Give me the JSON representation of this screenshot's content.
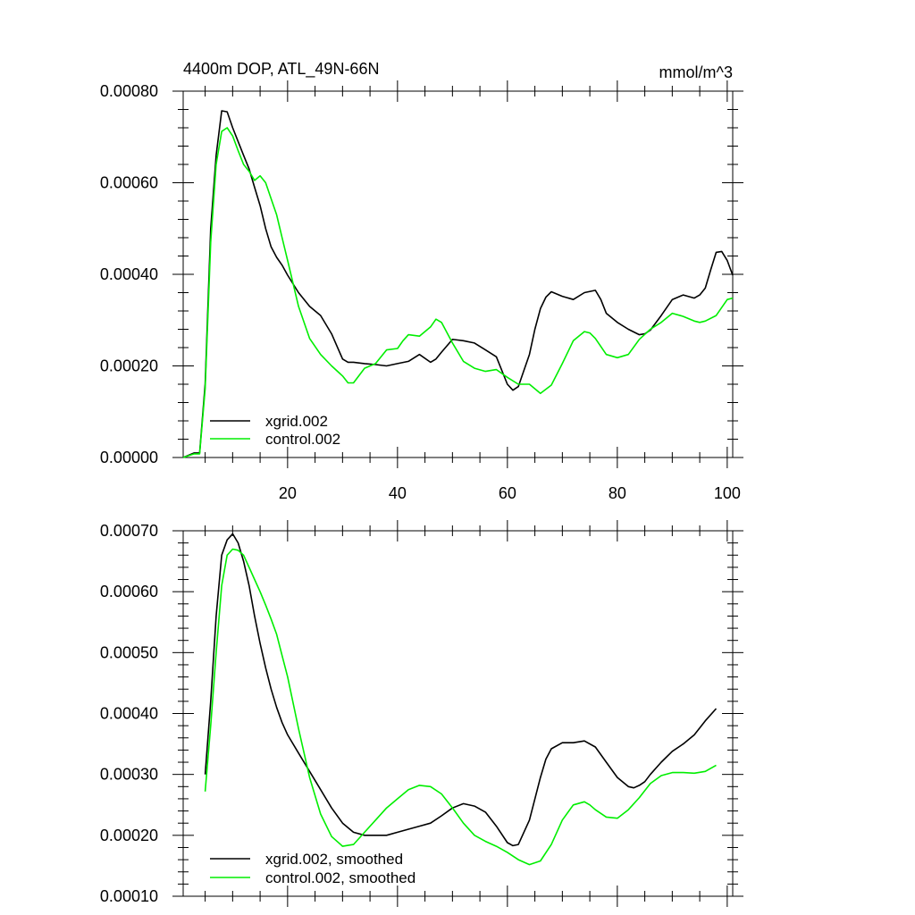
{
  "chart_data": [
    {
      "type": "line",
      "title": "4400m DOP, ATL_49N-66N",
      "units_label": "mmol/m^3",
      "xlim": [
        1,
        101
      ],
      "ylim": [
        0,
        0.0008
      ],
      "x_ticks": [
        20,
        40,
        60,
        80,
        100
      ],
      "x_tick_labels": [
        "20",
        "40",
        "60",
        "80",
        "100"
      ],
      "y_ticks": [
        0,
        0.0002,
        0.0004,
        0.0006,
        0.0008
      ],
      "y_tick_labels": [
        "0.00000",
        "0.00020",
        "0.00040",
        "0.00060",
        "0.00080"
      ],
      "legend_position": "bottom-left",
      "series": [
        {
          "name": "xgrid.002",
          "color": "#000000",
          "x": [
            1,
            3,
            4,
            5,
            6,
            7,
            8,
            9,
            10,
            11,
            12,
            13,
            14,
            15,
            16,
            17,
            18,
            19,
            20,
            22,
            24,
            26,
            28,
            30,
            31,
            32,
            34,
            36,
            38,
            40,
            42,
            44,
            46,
            47,
            48,
            50,
            52,
            54,
            56,
            58,
            60,
            61,
            62,
            63,
            64,
            65,
            66,
            67,
            68,
            70,
            72,
            74,
            76,
            77,
            78,
            80,
            82,
            84,
            85,
            86,
            88,
            90,
            92,
            94,
            95,
            96,
            97,
            98,
            99,
            100,
            101
          ],
          "values": [
            0.0,
            1e-05,
            1e-05,
            0.00016,
            0.0005,
            0.00066,
            0.000757,
            0.000755,
            0.00072,
            0.00069,
            0.00066,
            0.00063,
            0.00059,
            0.00055,
            0.0005,
            0.00046,
            0.000437,
            0.00042,
            0.000398,
            0.00036,
            0.00033,
            0.00031,
            0.00027,
            0.000215,
            0.000208,
            0.000208,
            0.000205,
            0.000203,
            0.0002,
            0.000205,
            0.00021,
            0.000225,
            0.000208,
            0.000215,
            0.00023,
            0.000258,
            0.000255,
            0.00025,
            0.000235,
            0.00022,
            0.00016,
            0.000147,
            0.000155,
            0.00019,
            0.000225,
            0.00028,
            0.000325,
            0.00035,
            0.000362,
            0.000352,
            0.000345,
            0.00036,
            0.000365,
            0.000345,
            0.000315,
            0.000295,
            0.00028,
            0.000268,
            0.00027,
            0.000278,
            0.00031,
            0.000345,
            0.000355,
            0.000348,
            0.000355,
            0.00037,
            0.00041,
            0.000448,
            0.00045,
            0.00043,
            0.000398
          ]
        },
        {
          "name": "control.002",
          "color": "#00ee00",
          "x": [
            1,
            3,
            4,
            5,
            6,
            7,
            8,
            9,
            10,
            11,
            12,
            13,
            14,
            15,
            16,
            17,
            18,
            19,
            20,
            22,
            24,
            26,
            28,
            30,
            31,
            32,
            34,
            36,
            38,
            40,
            41,
            42,
            44,
            46,
            47,
            48,
            50,
            52,
            54,
            56,
            58,
            60,
            62,
            64,
            66,
            68,
            70,
            72,
            74,
            75,
            76,
            78,
            80,
            82,
            84,
            86,
            88,
            90,
            92,
            94,
            95,
            96,
            98,
            100,
            101
          ],
          "values": [
            0.0,
            8e-06,
            8e-06,
            0.00015,
            0.00047,
            0.00064,
            0.000712,
            0.00072,
            0.000702,
            0.00067,
            0.00064,
            0.000625,
            0.000605,
            0.000615,
            0.0006,
            0.000565,
            0.00053,
            0.00048,
            0.00043,
            0.00033,
            0.00026,
            0.000225,
            0.0002,
            0.000178,
            0.000163,
            0.000163,
            0.000195,
            0.000205,
            0.000235,
            0.000238,
            0.000255,
            0.000268,
            0.000265,
            0.000285,
            0.000302,
            0.000295,
            0.00025,
            0.00021,
            0.000195,
            0.000188,
            0.000192,
            0.000175,
            0.00016,
            0.00016,
            0.00014,
            0.000158,
            0.000205,
            0.000255,
            0.000275,
            0.000272,
            0.00026,
            0.000225,
            0.000218,
            0.000225,
            0.000258,
            0.00028,
            0.000295,
            0.000315,
            0.000308,
            0.000298,
            0.000295,
            0.000298,
            0.00031,
            0.000345,
            0.000348
          ]
        }
      ]
    },
    {
      "type": "line",
      "xlim": [
        1,
        101
      ],
      "ylim": [
        0.0001,
        0.0007
      ],
      "x_ticks": [
        20,
        40,
        60,
        80,
        100
      ],
      "y_ticks": [
        0.0001,
        0.0002,
        0.0003,
        0.0004,
        0.0005,
        0.0006,
        0.0007
      ],
      "y_tick_labels": [
        "0.00010",
        "0.00020",
        "0.00030",
        "0.00040",
        "0.00050",
        "0.00060",
        "0.00070"
      ],
      "legend_position": "bottom-left",
      "series": [
        {
          "name": "xgrid.002, smoothed",
          "color": "#000000",
          "x": [
            5,
            6,
            7,
            8,
            9,
            10,
            11,
            12,
            13,
            14,
            15,
            16,
            17,
            18,
            19,
            20,
            22,
            24,
            26,
            28,
            30,
            32,
            34,
            36,
            38,
            40,
            42,
            44,
            46,
            48,
            50,
            52,
            54,
            56,
            58,
            60,
            61,
            62,
            64,
            66,
            67,
            68,
            70,
            72,
            74,
            76,
            78,
            80,
            82,
            83,
            84,
            85,
            86,
            88,
            90,
            92,
            94,
            96,
            98
          ],
          "values": [
            0.0003,
            0.00042,
            0.00056,
            0.00066,
            0.000685,
            0.000695,
            0.00068,
            0.00065,
            0.00061,
            0.00056,
            0.000515,
            0.000475,
            0.00044,
            0.00041,
            0.000385,
            0.000365,
            0.000335,
            0.000305,
            0.000275,
            0.000245,
            0.00022,
            0.000205,
            0.0002,
            0.0002,
            0.0002,
            0.000205,
            0.00021,
            0.000215,
            0.00022,
            0.000232,
            0.000245,
            0.000252,
            0.000248,
            0.000238,
            0.000215,
            0.000188,
            0.000183,
            0.000185,
            0.000225,
            0.000295,
            0.000325,
            0.000342,
            0.000352,
            0.000352,
            0.000355,
            0.000345,
            0.00032,
            0.000295,
            0.00028,
            0.000278,
            0.000282,
            0.000288,
            0.0003,
            0.00032,
            0.000338,
            0.00035,
            0.000365,
            0.000388,
            0.000408
          ]
        },
        {
          "name": "control.002, smoothed",
          "color": "#00ee00",
          "x": [
            5,
            6,
            7,
            8,
            9,
            10,
            11,
            12,
            13,
            14,
            15,
            16,
            17,
            18,
            19,
            20,
            22,
            24,
            26,
            28,
            30,
            32,
            34,
            36,
            38,
            40,
            42,
            44,
            46,
            48,
            50,
            52,
            54,
            56,
            58,
            60,
            62,
            64,
            66,
            68,
            70,
            72,
            74,
            75,
            76,
            78,
            80,
            82,
            84,
            86,
            88,
            90,
            92,
            94,
            96,
            98
          ],
          "values": [
            0.000272,
            0.00038,
            0.0005,
            0.00061,
            0.00066,
            0.00067,
            0.000668,
            0.00066,
            0.00064,
            0.00062,
            0.0006,
            0.000578,
            0.000555,
            0.00053,
            0.000495,
            0.00046,
            0.000375,
            0.000295,
            0.000235,
            0.000198,
            0.000182,
            0.000185,
            0.000205,
            0.000225,
            0.000245,
            0.00026,
            0.000275,
            0.000282,
            0.00028,
            0.000268,
            0.000245,
            0.00022,
            0.0002,
            0.00019,
            0.000182,
            0.000172,
            0.00016,
            0.000152,
            0.000158,
            0.000185,
            0.000225,
            0.00025,
            0.000255,
            0.00025,
            0.000242,
            0.00023,
            0.000228,
            0.000242,
            0.000262,
            0.000285,
            0.000298,
            0.000303,
            0.000303,
            0.000302,
            0.000305,
            0.000315
          ]
        }
      ]
    }
  ]
}
